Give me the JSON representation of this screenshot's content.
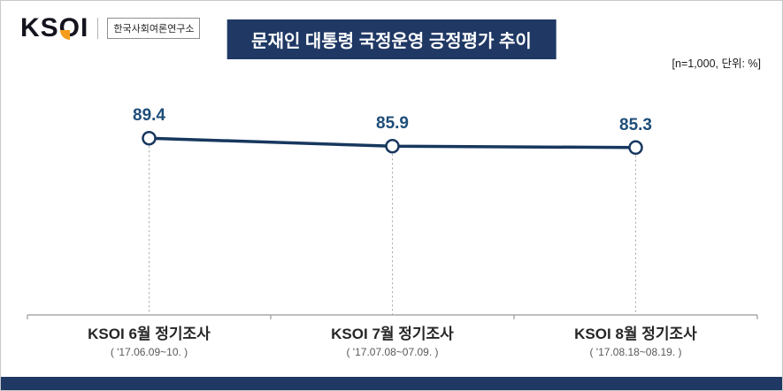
{
  "header": {
    "logo": {
      "text": "KSOI",
      "subtitle": "한국사회여론연구소"
    },
    "title": "문재인 대통령 국정운영 긍정평가 추이",
    "sample_note": "[n=1,000,  단위: %]"
  },
  "colors": {
    "navy": "#1f3864",
    "line": "#17375e",
    "value_label": "#1f4e79",
    "axis": "#999999",
    "drop_line": "#a6a6a6",
    "logo_accent": "#f59c1a"
  },
  "chart_data": {
    "type": "line",
    "title": "문재인 대통령 국정운영 긍정평가 추이",
    "categories": [
      "KSOI 6월 정기조사",
      "KSOI 7월 정기조사",
      "KSOI 8월 정기조사"
    ],
    "category_dates": [
      "( '17.06.09~10. )",
      "( '17.07.08~07.09. )",
      "( '17.08.18~08.19. )"
    ],
    "values": [
      89.4,
      85.9,
      85.3
    ],
    "unit": "%",
    "sample_size": "n=1,000",
    "ylim": [
      0,
      100
    ],
    "grid": false,
    "legend": "none",
    "marker": "open-circle",
    "value_labels_shown": true
  }
}
